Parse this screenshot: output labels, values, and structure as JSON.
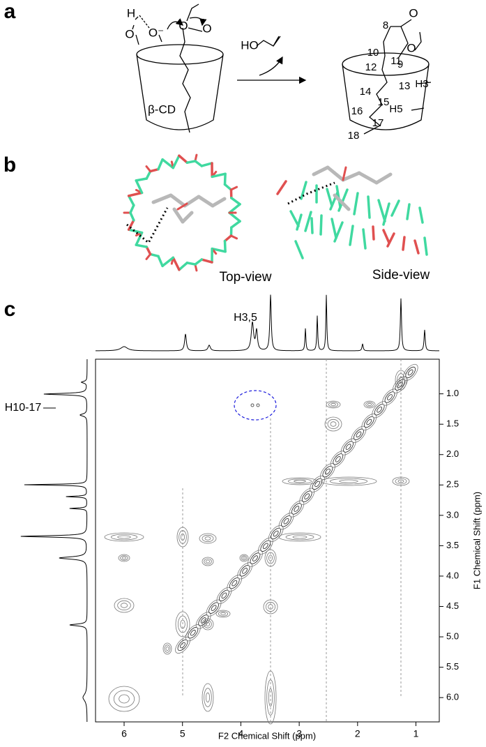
{
  "panels": [
    {
      "label": "a"
    },
    {
      "label": "b"
    },
    {
      "label": "c"
    }
  ],
  "scheme": {
    "left": [
      "H",
      "O",
      "O⁻",
      "O",
      "O",
      "β-CD"
    ],
    "reagent": "HO",
    "right_labels": [
      "O",
      "O",
      "8",
      "9",
      "10",
      "11",
      "12",
      "13",
      "14",
      "15",
      "16",
      "17",
      "18"
    ],
    "protons": [
      "H3",
      "H5"
    ]
  },
  "views": [
    "Top-view",
    "Side-view"
  ],
  "nmr": {
    "top_label": "H3,5",
    "side_label": "H10-17",
    "x_label": "F2 Chemical Shift (ppm)",
    "y_label": "F1 Chemical Shift (ppm)",
    "xlim": [
      6.49,
      0.6
    ],
    "xticks": [
      6,
      5,
      4,
      3,
      2,
      1
    ],
    "ylim": [
      0.43,
      6.4
    ],
    "yticks": [
      {
        "value": 1,
        "label": "1.0"
      },
      {
        "value": 1.5,
        "label": "1.5"
      },
      {
        "value": 2,
        "label": "2.0"
      },
      {
        "value": 2.5,
        "label": "2.5"
      },
      {
        "value": 3,
        "label": "3.0"
      },
      {
        "value": 3.5,
        "label": "3.5"
      },
      {
        "value": 4,
        "label": "4.0"
      },
      {
        "value": 4.5,
        "label": "4.5"
      },
      {
        "value": 5,
        "label": "5.0"
      },
      {
        "value": 5.5,
        "label": "5.5"
      },
      {
        "value": 6,
        "label": "6.0"
      }
    ]
  }
}
